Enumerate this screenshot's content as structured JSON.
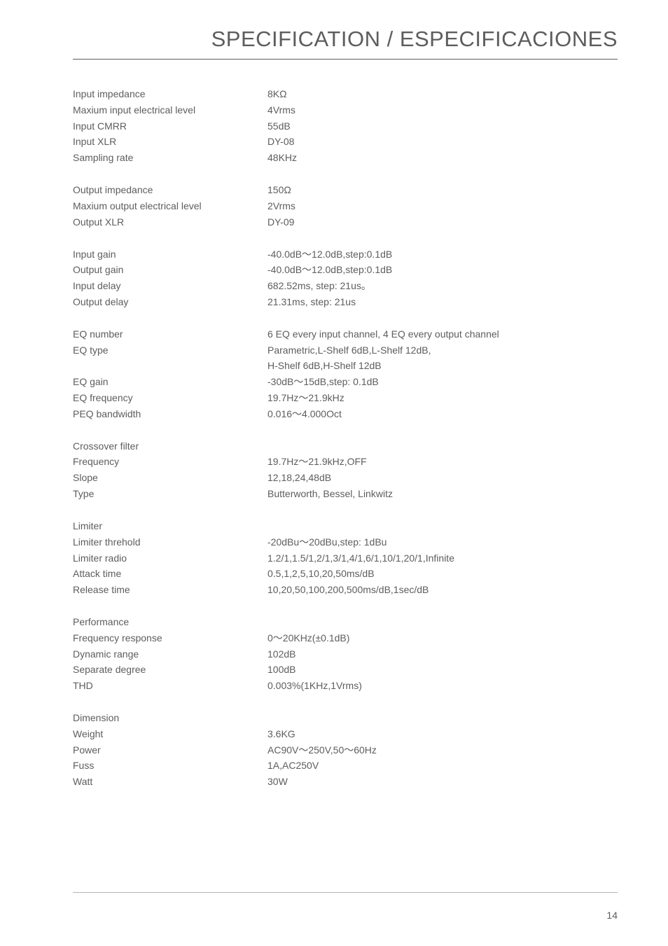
{
  "title": "SPECIFICATION / ESPECIFICACIONES",
  "page_number": "14",
  "colors": {
    "text": "#5d5d5d",
    "background": "#ffffff",
    "divider": "#5d5d5d",
    "footer_line": "#b5b5b5"
  },
  "typography": {
    "title_fontsize": 31,
    "body_fontsize": 14,
    "font_family": "Arial, Helvetica, sans-serif"
  },
  "blocks": [
    {
      "rows": [
        {
          "label": "Input impedance",
          "value": "8KΩ"
        },
        {
          "label": "Maxium input electrical level",
          "value": "4Vrms"
        },
        {
          "label": "Input CMRR",
          "value": "55dB"
        },
        {
          "label": "Input XLR",
          "value": "DY-08"
        },
        {
          "label": "Sampling rate",
          "value": "48KHz"
        }
      ]
    },
    {
      "rows": [
        {
          "label": "Output impedance",
          "value": "150Ω"
        },
        {
          "label": "Maxium output electrical level",
          "value": "2Vrms"
        },
        {
          "label": "Output XLR",
          "value": "DY-09"
        }
      ]
    },
    {
      "rows": [
        {
          "label": "Input gain",
          "value": " -40.0dB～12.0dB,step:0.1dB"
        },
        {
          "label": "Output gain",
          "value": " -40.0dB～12.0dB,step:0.1dB"
        },
        {
          "label": "Input delay",
          "value": " 682.52ms, step: 21us。"
        },
        {
          "label": "Output delay",
          "value": " 21.31ms, step: 21us"
        }
      ]
    },
    {
      "rows": [
        {
          "label": "EQ number",
          "value": " 6 EQ every input channel, 4 EQ every output channel"
        },
        {
          "label": "EQ type",
          "value": "Parametric,L-Shelf 6dB,L-Shelf 12dB,"
        },
        {
          "label": "",
          "value": " H-Shelf 6dB,H-Shelf 12dB"
        },
        {
          "label": "EQ gain",
          "value": " -30dB～15dB,step: 0.1dB"
        },
        {
          "label": "EQ frequency",
          "value": " 19.7Hz～21.9kHz"
        },
        {
          "label": "PEQ bandwidth",
          "value": " 0.016～4.000Oct"
        }
      ]
    },
    {
      "rows": [
        {
          "label": "Crossover filter",
          "value": ""
        },
        {
          "label": "Frequency",
          "value": " 19.7Hz～21.9kHz,OFF"
        },
        {
          "label": "Slope",
          "value": " 12,18,24,48dB"
        },
        {
          "label": "Type",
          "value": " Butterworth, Bessel, Linkwitz"
        }
      ]
    },
    {
      "rows": [
        {
          "label": "Limiter",
          "value": ""
        },
        {
          "label": "Limiter  threhold",
          "value": " -20dBu～20dBu,step: 1dBu"
        },
        {
          "label": "Limiter radio",
          "value": " 1.2/1,1.5/1,2/1,3/1,4/1,6/1,10/1,20/1,Infinite"
        },
        {
          "label": "Attack time",
          "value": " 0.5,1,2,5,10,20,50ms/dB"
        },
        {
          "label": "Release  time",
          "value": " 10,20,50,100,200,500ms/dB,1sec/dB"
        }
      ]
    },
    {
      "rows": [
        {
          "label": "Performance",
          "value": ""
        },
        {
          "label": "Frequency response",
          "value": " 0～20KHz(±0.1dB)"
        },
        {
          "label": "Dynamic range",
          "value": "102dB"
        },
        {
          "label": "Separate degree",
          "value": "100dB"
        },
        {
          "label": "THD",
          "value": " 0.003%(1KHz,1Vrms)"
        }
      ]
    },
    {
      "rows": [
        {
          "label": "Dimension",
          "value": ""
        },
        {
          "label": "Weight",
          "value": " 3.6KG"
        },
        {
          "label": "Power",
          "value": "  AC90V～250V,50～60Hz"
        },
        {
          "label": "Fuss",
          "value": " 1A,AC250V"
        },
        {
          "label": "Watt",
          "value": " 30W"
        }
      ]
    }
  ]
}
